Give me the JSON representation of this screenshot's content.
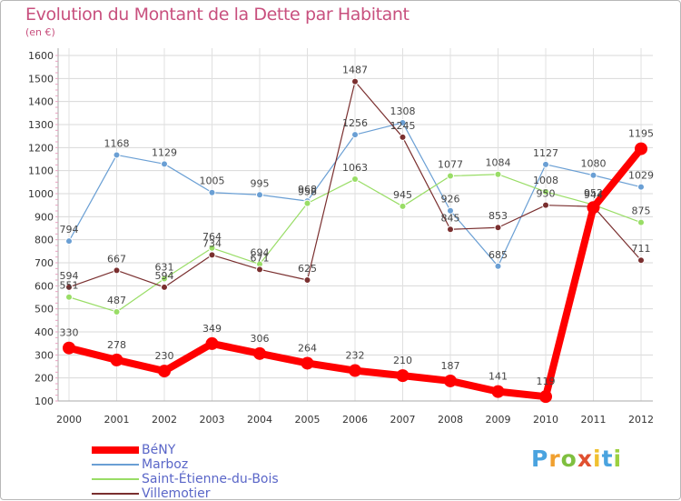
{
  "title": "Evolution du Montant de la Dette par Habitant",
  "unit_label": "(en €)",
  "logo": {
    "text": "Proxiti",
    "letter_colors": [
      "#4aa3df",
      "#f0a030",
      "#7fbf3f",
      "#e05030",
      "#f0c030",
      "#4aa3df",
      "#9bd040"
    ]
  },
  "chart_data": {
    "type": "line",
    "title": "Evolution du Montant de la Dette par Habitant",
    "ylabel": "(en €)",
    "x": [
      "2000",
      "2001",
      "2002",
      "2003",
      "2004",
      "2005",
      "2006",
      "2007",
      "2008",
      "2009",
      "2010",
      "2011",
      "2012"
    ],
    "ylim": [
      100,
      1600
    ],
    "yticks": [
      100,
      200,
      300,
      400,
      500,
      600,
      700,
      800,
      900,
      1000,
      1100,
      1200,
      1300,
      1400,
      1500,
      1600
    ],
    "grid": true,
    "legend_position": "bottom-left",
    "series": [
      {
        "name": "BéNY",
        "color": "#ff0000",
        "width": 8,
        "marker": 7,
        "values": [
          330,
          278,
          230,
          349,
          306,
          264,
          232,
          210,
          187,
          141,
          119,
          940,
          1195
        ],
        "labels": [
          "330",
          "278",
          "230",
          "349",
          "306",
          "264",
          "232",
          "210",
          "187",
          "141",
          "119",
          "",
          "1195"
        ]
      },
      {
        "name": "Marboz",
        "color": "#6a9fd4",
        "width": 1.2,
        "marker": 3.5,
        "values": [
          794,
          1168,
          1129,
          1005,
          995,
          968,
          1256,
          1308,
          926,
          685,
          1127,
          1080,
          1029
        ],
        "labels": [
          "794",
          "1168",
          "1129",
          "1005",
          "995",
          "968",
          "1256",
          "1308",
          "926",
          "685",
          "1127",
          "1080",
          "1029"
        ]
      },
      {
        "name": "Saint-Étienne-du-Bois",
        "color": "#99dd66",
        "width": 1.2,
        "marker": 3.5,
        "values": [
          551,
          487,
          631,
          764,
          694,
          958,
          1063,
          945,
          1077,
          1084,
          1008,
          952,
          875
        ],
        "labels": [
          "551",
          "487",
          "631",
          "764",
          "694",
          "958",
          "1063",
          "945",
          "1077",
          "1084",
          "1008",
          "952",
          "875"
        ]
      },
      {
        "name": "Villemotier",
        "color": "#7a2f2f",
        "width": 1.2,
        "marker": 3.5,
        "values": [
          594,
          667,
          594,
          734,
          671,
          625,
          1487,
          1245,
          845,
          853,
          950,
          944,
          711
        ],
        "labels": [
          "594",
          "667",
          "594",
          "734",
          "671",
          "625",
          "1487",
          "1245",
          "845",
          "853",
          "950",
          "944",
          "711"
        ]
      }
    ]
  }
}
